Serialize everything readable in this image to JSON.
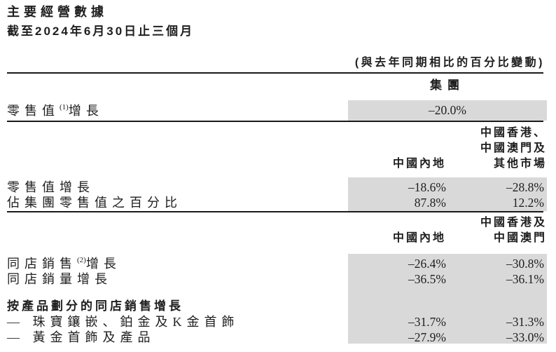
{
  "page": {
    "title": "主要經營數據",
    "subtitle": "截至2024年6月30日止三個月",
    "note": "(與去年同期相比的百分比變動)"
  },
  "colors": {
    "highlight": "#d9d9d9",
    "rule": "#1a1a1a",
    "text": "#1e1e1e"
  },
  "group_section": {
    "column_header": "集團",
    "row": {
      "label_main": "零售值",
      "label_sup": "(1)",
      "label_rest": "增長",
      "value": "–20.0%"
    }
  },
  "markets_section": {
    "col1_header": "中國內地",
    "col2_header_line1": "中國香港、",
    "col2_header_line2": "中國澳門及",
    "col2_header_line3": "其他市場",
    "rows": [
      {
        "label": "零售值增長",
        "v1": "–18.6%",
        "v2": "–28.8%"
      },
      {
        "label": "佔集團零售值之百分比",
        "v1": "87.8%",
        "v2": "12.2%"
      }
    ]
  },
  "same_store_section": {
    "col1_header": "中國內地",
    "col2_header_line1": "中國香港及",
    "col2_header_line2": "中國澳門",
    "row_sss": {
      "label_main": "同店銷售",
      "label_sup": "(2)",
      "label_rest": "增長",
      "v1": "–26.4%",
      "v2": "–30.8%"
    },
    "row_ssv": {
      "label": "同店銷量增長",
      "v1": "–36.5%",
      "v2": "–36.1%"
    },
    "by_product_header": "按產品劃分的同店銷售增長",
    "product_rows": [
      {
        "label": "— 珠寶鑲嵌、鉑金及K金首飾",
        "v1": "–31.7%",
        "v2": "–31.3%"
      },
      {
        "label": "— 黃金首飾及產品",
        "v1": "–27.9%",
        "v2": "–33.0%"
      }
    ]
  }
}
